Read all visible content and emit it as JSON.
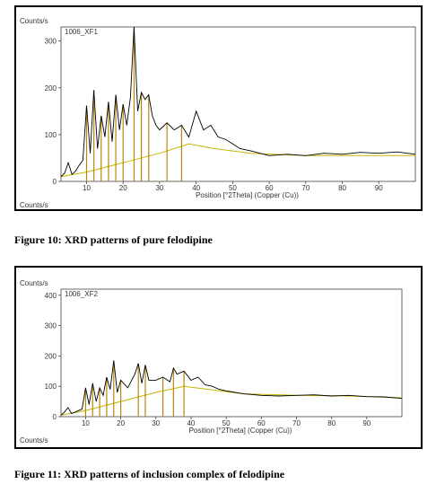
{
  "colors": {
    "background": "#ffffff",
    "trace": "#000000",
    "peak_fill": "#b8860b",
    "baseline": "#c8b400",
    "frame": "#000000"
  },
  "captions": {
    "fig10": "Figure 10: XRD patterns of pure felodipine",
    "fig11": "Figure 11: XRD patterns of inclusion complex of felodipine"
  },
  "chart_data": [
    {
      "type": "line",
      "sample_label": "1006_XF1",
      "y_unit_label": "Counts/s",
      "bottom_unit_label": "Counts/s",
      "xlabel": "Position [°2Theta] (Copper (Cu))",
      "xlim": [
        3,
        100
      ],
      "ylim": [
        0,
        330
      ],
      "x_ticks": [
        10,
        20,
        30,
        40,
        50,
        60,
        70,
        80,
        90
      ],
      "y_ticks": [
        0,
        100,
        200,
        300
      ],
      "series": [
        {
          "values": [
            [
              3,
              10
            ],
            [
              4,
              18
            ],
            [
              5,
              40
            ],
            [
              6,
              15
            ],
            [
              7,
              22
            ],
            [
              8,
              35
            ],
            [
              9,
              45
            ],
            [
              10,
              162
            ],
            [
              11,
              60
            ],
            [
              12,
              195
            ],
            [
              13,
              70
            ],
            [
              14,
              140
            ],
            [
              15,
              95
            ],
            [
              16,
              170
            ],
            [
              17,
              85
            ],
            [
              18,
              185
            ],
            [
              19,
              110
            ],
            [
              20,
              165
            ],
            [
              21,
              120
            ],
            [
              22,
              180
            ],
            [
              23,
              330
            ],
            [
              24,
              150
            ],
            [
              25,
              190
            ],
            [
              26,
              175
            ],
            [
              27,
              185
            ],
            [
              28,
              140
            ],
            [
              29,
              120
            ],
            [
              30,
              110
            ],
            [
              32,
              125
            ],
            [
              34,
              110
            ],
            [
              36,
              120
            ],
            [
              38,
              95
            ],
            [
              40,
              150
            ],
            [
              42,
              110
            ],
            [
              44,
              120
            ],
            [
              46,
              95
            ],
            [
              48,
              90
            ],
            [
              50,
              80
            ],
            [
              52,
              70
            ],
            [
              55,
              65
            ],
            [
              60,
              55
            ],
            [
              65,
              58
            ],
            [
              70,
              55
            ],
            [
              75,
              60
            ],
            [
              80,
              58
            ],
            [
              85,
              62
            ],
            [
              90,
              60
            ],
            [
              95,
              63
            ],
            [
              100,
              58
            ]
          ]
        }
      ],
      "baseline": [
        [
          3,
          10
        ],
        [
          10,
          20
        ],
        [
          20,
          40
        ],
        [
          30,
          60
        ],
        [
          38,
          80
        ],
        [
          45,
          70
        ],
        [
          55,
          60
        ],
        [
          70,
          55
        ],
        [
          85,
          55
        ],
        [
          100,
          55
        ]
      ]
    },
    {
      "type": "line",
      "sample_label": "1006_XF2",
      "y_unit_label": "Counts/s",
      "bottom_unit_label": "Counts/s",
      "xlabel": "Position [°2Theta] (Copper (Cu))",
      "xlim": [
        3,
        100
      ],
      "ylim": [
        0,
        420
      ],
      "x_ticks": [
        10,
        20,
        30,
        40,
        50,
        60,
        70,
        80,
        90
      ],
      "y_ticks": [
        0,
        100,
        200,
        300,
        400
      ],
      "series": [
        {
          "values": [
            [
              3,
              5
            ],
            [
              4,
              15
            ],
            [
              5,
              30
            ],
            [
              6,
              10
            ],
            [
              7,
              15
            ],
            [
              8,
              20
            ],
            [
              9,
              25
            ],
            [
              10,
              95
            ],
            [
              11,
              40
            ],
            [
              12,
              110
            ],
            [
              13,
              50
            ],
            [
              14,
              95
            ],
            [
              15,
              70
            ],
            [
              16,
              130
            ],
            [
              17,
              90
            ],
            [
              18,
              185
            ],
            [
              19,
              80
            ],
            [
              20,
              120
            ],
            [
              22,
              95
            ],
            [
              24,
              140
            ],
            [
              25,
              175
            ],
            [
              26,
              110
            ],
            [
              27,
              170
            ],
            [
              28,
              120
            ],
            [
              30,
              120
            ],
            [
              32,
              130
            ],
            [
              34,
              115
            ],
            [
              35,
              160
            ],
            [
              36,
              140
            ],
            [
              38,
              150
            ],
            [
              40,
              120
            ],
            [
              42,
              130
            ],
            [
              44,
              105
            ],
            [
              46,
              100
            ],
            [
              48,
              90
            ],
            [
              50,
              85
            ],
            [
              55,
              75
            ],
            [
              60,
              70
            ],
            [
              65,
              68
            ],
            [
              70,
              70
            ],
            [
              75,
              72
            ],
            [
              80,
              68
            ],
            [
              85,
              70
            ],
            [
              90,
              66
            ],
            [
              95,
              65
            ],
            [
              100,
              60
            ]
          ]
        }
      ],
      "baseline": [
        [
          3,
          5
        ],
        [
          10,
          20
        ],
        [
          20,
          50
        ],
        [
          30,
          80
        ],
        [
          38,
          100
        ],
        [
          45,
          90
        ],
        [
          55,
          75
        ],
        [
          70,
          70
        ],
        [
          85,
          68
        ],
        [
          100,
          62
        ]
      ]
    }
  ]
}
